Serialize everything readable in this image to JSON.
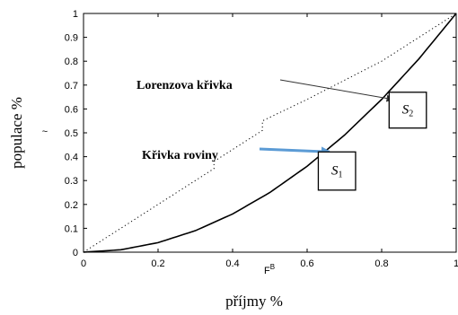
{
  "chart_data": {
    "type": "line",
    "xlabel": "příjmy %",
    "xlabel_inner": "F",
    "xlabel_inner_sup": "B",
    "ylabel": "populace %",
    "ylabel_inner": "~",
    "xlim": [
      0,
      1
    ],
    "ylim": [
      0,
      1
    ],
    "x_ticks": [
      "0",
      "0.2",
      "0.4",
      "0.6",
      "0.8",
      "1"
    ],
    "y_ticks": [
      "0",
      "0.1",
      "0.2",
      "0.3",
      "0.4",
      "0.5",
      "0.6",
      "0.7",
      "0.8",
      "0.9",
      "1"
    ],
    "grid": false,
    "series": [
      {
        "style": "dotted",
        "color": "#000000",
        "x": [
          0,
          0.1,
          0.2,
          0.3,
          0.35,
          0.35,
          0.48,
          0.48,
          0.6,
          0.7,
          0.8,
          0.9,
          1
        ],
        "y": [
          0,
          0.1,
          0.2,
          0.3,
          0.35,
          0.38,
          0.51,
          0.55,
          0.64,
          0.72,
          0.8,
          0.9,
          1
        ]
      },
      {
        "style": "solid",
        "color": "#000000",
        "x": [
          0,
          0.1,
          0.2,
          0.3,
          0.4,
          0.5,
          0.6,
          0.7,
          0.8,
          0.9,
          1
        ],
        "y": [
          0,
          0.01,
          0.04,
          0.09,
          0.16,
          0.25,
          0.36,
          0.49,
          0.64,
          0.81,
          1
        ]
      }
    ],
    "annotations": [
      {
        "text": "Lorenzova křivka",
        "target": [
          0.83,
          0.64
        ],
        "arrow_color": "#333333"
      },
      {
        "text": "Křivka roviny",
        "target": [
          0.66,
          0.42
        ],
        "arrow_color": "#5b9bd5"
      }
    ],
    "boxes": [
      {
        "label": "S",
        "sub": "1",
        "x_range": [
          0.63,
          0.73
        ],
        "y_range": [
          0.26,
          0.42
        ]
      },
      {
        "label": "S",
        "sub": "2",
        "x_range": [
          0.82,
          0.92
        ],
        "y_range": [
          0.52,
          0.67
        ]
      }
    ]
  }
}
